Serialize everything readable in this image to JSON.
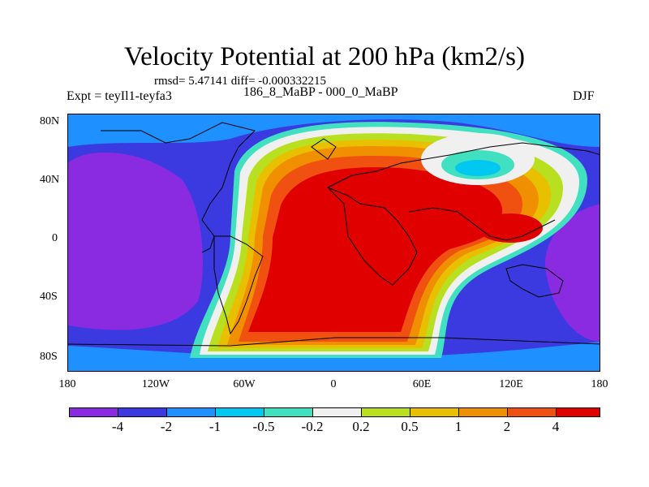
{
  "title": "Velocity Potential at 200 hPa (km2/s)",
  "stats": "rmsd= 5.47141 diff= -0.000332215",
  "experiment": "Expt = teyIl1-teyfa3",
  "center_label": "186_8_MaBP - 000_0_MaBP",
  "season": "DJF",
  "map": {
    "y_ticks": [
      "80N",
      "40N",
      "0",
      "40S",
      "80S"
    ],
    "x_ticks": [
      "180",
      "120W",
      "60W",
      "0",
      "60E",
      "120E",
      "180"
    ]
  },
  "colorbar": {
    "colors": [
      "#8a2be2",
      "#3a3ae0",
      "#1e90ff",
      "#00c8f0",
      "#40e0c0",
      "#f0f0f0",
      "#b8e020",
      "#e8c000",
      "#f09000",
      "#f05010",
      "#e00000"
    ],
    "labels": [
      "-4",
      "-2",
      "-1",
      "-0.5",
      "-0.2",
      "0.2",
      "0.5",
      "1",
      "2",
      "4"
    ]
  },
  "colors": {
    "strong_negative": "#8a2be2",
    "negative": "#3a3ae0",
    "neutral": "#f0f0f0",
    "positive": "#f09000",
    "strong_positive": "#e00000"
  }
}
